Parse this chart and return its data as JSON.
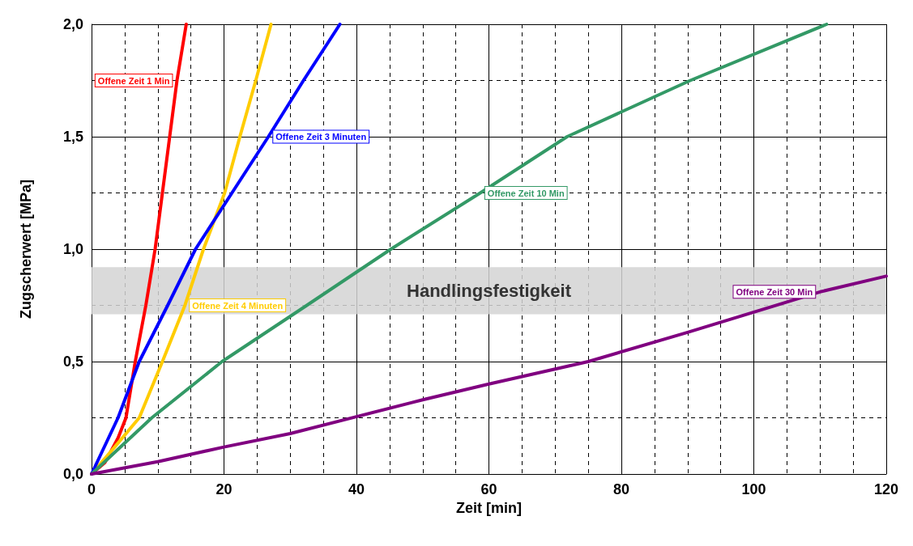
{
  "chart_data": {
    "type": "line",
    "xlabel": "Zeit [min]",
    "ylabel": "Zugscherwert [MPa]",
    "xlim": [
      0,
      120
    ],
    "xticks": [
      0,
      20,
      40,
      60,
      80,
      100,
      120
    ],
    "ylim": [
      0,
      2
    ],
    "yticks": [
      {
        "value": 0,
        "label": "0,0"
      },
      {
        "value": 0.5,
        "label": "0,5"
      },
      {
        "value": 1,
        "label": "1,0"
      },
      {
        "value": 1.5,
        "label": "1,5"
      },
      {
        "value": 2,
        "label": "2,0"
      }
    ],
    "grid": true,
    "legend": false,
    "marker": "none",
    "line_style": "solid",
    "bands": [
      {
        "axis": "y",
        "from": 0.71,
        "to": 0.92,
        "label": "Handlingsfestigkeit",
        "color": "#d4d4d4"
      }
    ],
    "series": [
      {
        "name": "Offene Zeit 1 Min",
        "color": "#ff0000",
        "x": [
          0,
          2,
          4,
          5.2,
          6.6,
          8.2,
          9.6,
          10.7,
          11.8,
          12.9,
          14.3
        ],
        "values": [
          0,
          0.05,
          0.16,
          0.25,
          0.5,
          0.75,
          1.0,
          1.25,
          1.5,
          1.75,
          2.0
        ]
      },
      {
        "name": "Offene Zeit 4 Minuten",
        "color": "#ffcc00",
        "x": [
          0,
          3.5,
          7.2,
          10.7,
          14.1,
          16.9,
          20.1,
          22.4,
          24.8,
          27.1
        ],
        "values": [
          0,
          0.12,
          0.25,
          0.5,
          0.75,
          1.0,
          1.25,
          1.5,
          1.75,
          2.0
        ]
      },
      {
        "name": "Offene Zeit 3 Minuten",
        "color": "#0000ff",
        "x": [
          0,
          4,
          7.2,
          11.5,
          15.7,
          21.2,
          26.7,
          32,
          37.5
        ],
        "values": [
          0,
          0.25,
          0.5,
          0.75,
          1.0,
          1.25,
          1.5,
          1.75,
          2.0
        ]
      },
      {
        "name": "Offene Zeit 10 Min",
        "color": "#339966",
        "x": [
          0,
          9.1,
          19.7,
          32.5,
          45.2,
          58.7,
          71.8,
          90.4,
          111
        ],
        "values": [
          0,
          0.25,
          0.5,
          0.75,
          1.0,
          1.25,
          1.5,
          1.75,
          2.0
        ]
      },
      {
        "name": "Offene Zeit 30 Min",
        "color": "#800080",
        "x": [
          0,
          10,
          20,
          30,
          40,
          50,
          60,
          75,
          90,
          100,
          110,
          120
        ],
        "values": [
          0,
          0.055,
          0.12,
          0.18,
          0.255,
          0.33,
          0.4,
          0.5,
          0.63,
          0.72,
          0.81,
          0.88
        ]
      }
    ]
  }
}
